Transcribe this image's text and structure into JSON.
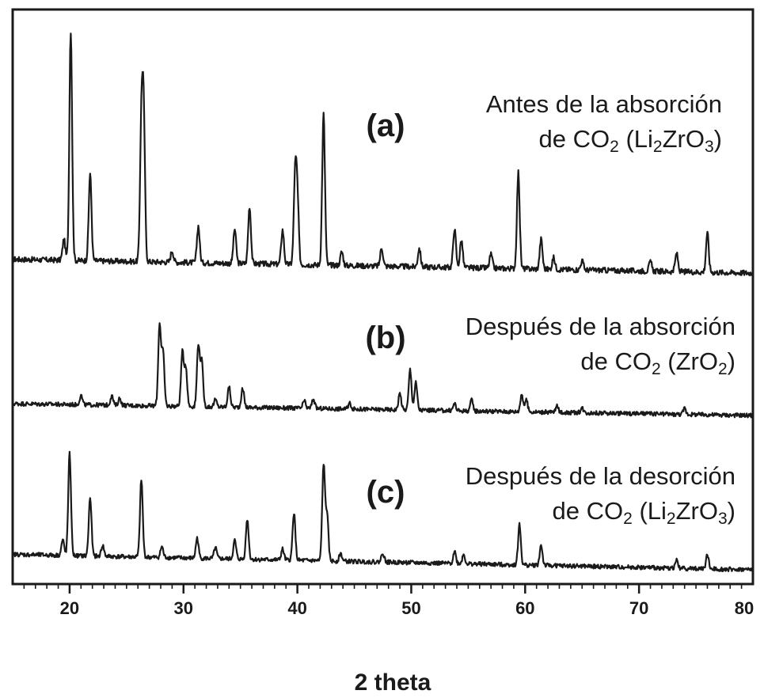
{
  "chart_data": {
    "type": "line",
    "title": "",
    "xlabel": "2 theta",
    "ylabel": "",
    "xlim": [
      15,
      80
    ],
    "x_ticks": [
      20,
      30,
      40,
      50,
      60,
      70,
      80
    ],
    "x_minor_step": 1,
    "grid": false,
    "legend": "none",
    "series": [
      {
        "panel": "(a)",
        "caption_line1": "Antes de la absorción",
        "caption_line2": [
          {
            "t": "de CO",
            "sub": false
          },
          {
            "t": "2",
            "sub": true
          },
          {
            "t": " (Li",
            "sub": false
          },
          {
            "t": "2",
            "sub": true
          },
          {
            "t": "ZrO",
            "sub": false
          },
          {
            "t": "3",
            "sub": true
          },
          {
            "t": ")",
            "sub": false
          }
        ],
        "baseline_start": 0.06,
        "baseline_end": 0.0,
        "noise": 0.012,
        "peaks": [
          [
            19.5,
            0.09
          ],
          [
            20.1,
            1.0
          ],
          [
            21.8,
            0.38
          ],
          [
            26.3,
            0.56
          ],
          [
            26.5,
            0.62
          ],
          [
            29.0,
            0.05
          ],
          [
            31.3,
            0.16
          ],
          [
            34.5,
            0.15
          ],
          [
            35.8,
            0.25
          ],
          [
            38.7,
            0.15
          ],
          [
            39.8,
            0.37
          ],
          [
            40.0,
            0.28
          ],
          [
            42.3,
            0.66
          ],
          [
            43.9,
            0.06
          ],
          [
            47.4,
            0.08
          ],
          [
            50.7,
            0.08
          ],
          [
            53.8,
            0.17
          ],
          [
            54.4,
            0.12
          ],
          [
            57.0,
            0.06
          ],
          [
            59.4,
            0.42
          ],
          [
            61.4,
            0.13
          ],
          [
            62.5,
            0.05
          ],
          [
            65.0,
            0.04
          ],
          [
            71.0,
            0.04
          ],
          [
            73.3,
            0.08
          ],
          [
            76.0,
            0.17
          ]
        ]
      },
      {
        "panel": "(b)",
        "caption_line1": "Después de la absorción",
        "caption_line2": [
          {
            "t": "de CO",
            "sub": false
          },
          {
            "t": "2",
            "sub": true
          },
          {
            "t": " (ZrO",
            "sub": false
          },
          {
            "t": "2",
            "sub": true
          },
          {
            "t": ")",
            "sub": false
          }
        ],
        "baseline_start": 0.1,
        "baseline_end": 0.0,
        "noise": 0.018,
        "peaks": [
          [
            21.0,
            0.08
          ],
          [
            23.7,
            0.08
          ],
          [
            24.4,
            0.06
          ],
          [
            27.9,
            0.68
          ],
          [
            28.2,
            0.45
          ],
          [
            29.9,
            0.45
          ],
          [
            30.2,
            0.33
          ],
          [
            31.3,
            0.52
          ],
          [
            31.6,
            0.38
          ],
          [
            32.8,
            0.06
          ],
          [
            34.0,
            0.17
          ],
          [
            35.2,
            0.16
          ],
          [
            40.6,
            0.06
          ],
          [
            41.4,
            0.08
          ],
          [
            44.6,
            0.05
          ],
          [
            49.0,
            0.14
          ],
          [
            49.9,
            0.34
          ],
          [
            50.4,
            0.23
          ],
          [
            53.8,
            0.06
          ],
          [
            55.3,
            0.09
          ],
          [
            59.7,
            0.15
          ],
          [
            60.1,
            0.1
          ],
          [
            62.8,
            0.05
          ],
          [
            65.0,
            0.04
          ],
          [
            74.0,
            0.05
          ]
        ]
      },
      {
        "panel": "(c)",
        "caption_line1": "Después de la desorción",
        "caption_line2": [
          {
            "t": "de CO",
            "sub": false
          },
          {
            "t": "2",
            "sub": true
          },
          {
            "t": " (Li",
            "sub": false
          },
          {
            "t": "2",
            "sub": true
          },
          {
            "t": "ZrO",
            "sub": false
          },
          {
            "t": "3",
            "sub": true
          },
          {
            "t": ")",
            "sub": false
          }
        ],
        "baseline_start": 0.1,
        "baseline_end": 0.0,
        "noise": 0.014,
        "peaks": [
          [
            19.4,
            0.1
          ],
          [
            20.0,
            0.66
          ],
          [
            21.8,
            0.38
          ],
          [
            22.9,
            0.07
          ],
          [
            26.3,
            0.5
          ],
          [
            28.1,
            0.07
          ],
          [
            31.2,
            0.13
          ],
          [
            32.8,
            0.07
          ],
          [
            34.5,
            0.12
          ],
          [
            35.6,
            0.26
          ],
          [
            38.7,
            0.07
          ],
          [
            39.7,
            0.31
          ],
          [
            42.3,
            0.62
          ],
          [
            42.6,
            0.3
          ],
          [
            43.8,
            0.05
          ],
          [
            47.5,
            0.06
          ],
          [
            53.8,
            0.08
          ],
          [
            54.6,
            0.06
          ],
          [
            59.5,
            0.26
          ],
          [
            61.4,
            0.13
          ],
          [
            73.3,
            0.05
          ],
          [
            76.0,
            0.09
          ]
        ]
      }
    ]
  }
}
